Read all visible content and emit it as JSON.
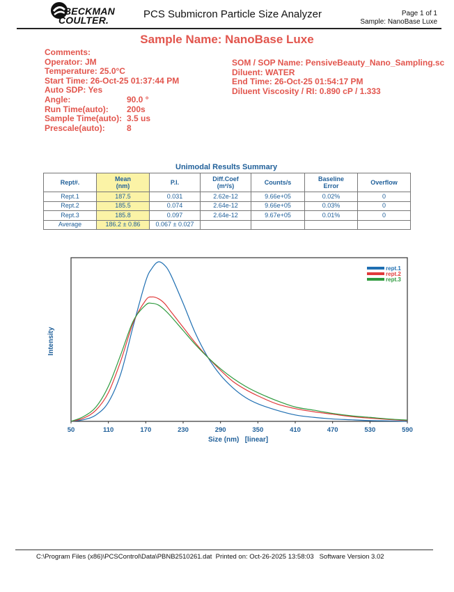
{
  "header": {
    "logo": "BECKMAN COULTER",
    "logo_line1": "BECKMAN",
    "logo_line2": "COULTER.",
    "app_title": "PCS Submicron Particle Size Analyzer",
    "page_label": "Page 1 of 1",
    "sample_label": "Sample: NanoBase Luxe"
  },
  "sample_title": "Sample Name: NanoBase Luxe",
  "meta_left": {
    "comments": "Comments:",
    "operator": "Operator: JM",
    "temperature": "Temperature: 25.0°C",
    "start_time": "Start Time: 26-Oct-25 01:37:44 PM",
    "auto_sdp": "Auto SDP: Yes",
    "angle_key": "Angle:",
    "angle_val": "90.0 °",
    "runtime_key": "Run Time(auto):",
    "runtime_val": "200s",
    "sampletime_key": "Sample Time(auto):",
    "sampletime_val": "3.5 us",
    "prescale_key": "Prescale(auto):",
    "prescale_val": "8"
  },
  "meta_right": {
    "som": "SOM / SOP Name: PensiveBeauty_Nano_Sampling.sc",
    "diluent": "Diluent: WATER",
    "end_time": "End Time: 26-Oct-25 01:54:17 PM",
    "viscosity": "Diluent Viscosity / RI: 0.890 cP / 1.333"
  },
  "table": {
    "title": "Unimodal Results Summary",
    "headers": [
      "Rept#.",
      "Mean",
      "P.I.",
      "Diff.Coef",
      "Counts/s",
      "Baseline",
      "Overflow"
    ],
    "subheaders": [
      "",
      "(nm)",
      "",
      "(m²/s)",
      "",
      "Error",
      ""
    ],
    "rows": [
      [
        "Rept.1",
        "187.5",
        "0.031",
        "2.62e-12",
        "9.66e+05",
        "0.02%",
        "0"
      ],
      [
        "Rept.2",
        "185.5",
        "0.074",
        "2.64e-12",
        "9.66e+05",
        "0.03%",
        "0"
      ],
      [
        "Rept.3",
        "185.8",
        "0.097",
        "2.64e-12",
        "9.67e+05",
        "0.01%",
        "0"
      ],
      [
        "Average",
        "186.2 ±  0.86",
        "0.067 ± 0.027",
        "",
        "",
        "",
        ""
      ]
    ]
  },
  "chart_data": {
    "type": "line",
    "xlabel": "Size (nm)   [linear]",
    "ylabel": "Intensity",
    "xlim": [
      50,
      590
    ],
    "ylim": [
      0,
      1.0
    ],
    "x_ticks": [
      50,
      110,
      170,
      230,
      290,
      350,
      410,
      470,
      530,
      590
    ],
    "series": [
      {
        "name": "rept.1",
        "color": "#1f6fb2",
        "x": [
          50,
          70,
          90,
          110,
          130,
          150,
          170,
          180,
          190,
          200,
          210,
          230,
          250,
          270,
          290,
          310,
          330,
          350,
          380,
          410,
          440,
          470,
          500,
          530,
          560,
          590
        ],
        "y": [
          0.0,
          0.01,
          0.04,
          0.12,
          0.3,
          0.6,
          0.88,
          0.96,
          1.0,
          0.98,
          0.92,
          0.74,
          0.55,
          0.4,
          0.29,
          0.21,
          0.15,
          0.11,
          0.07,
          0.04,
          0.025,
          0.015,
          0.01,
          0.005,
          0.003,
          0.0
        ]
      },
      {
        "name": "rept.2",
        "color": "#e03a3a",
        "x": [
          50,
          70,
          90,
          110,
          130,
          150,
          170,
          180,
          190,
          200,
          210,
          230,
          250,
          270,
          290,
          310,
          330,
          350,
          380,
          410,
          440,
          470,
          500,
          530,
          560,
          590
        ],
        "y": [
          0.0,
          0.02,
          0.07,
          0.18,
          0.38,
          0.62,
          0.76,
          0.78,
          0.77,
          0.74,
          0.69,
          0.59,
          0.49,
          0.4,
          0.32,
          0.25,
          0.2,
          0.16,
          0.11,
          0.08,
          0.06,
          0.045,
          0.03,
          0.02,
          0.012,
          0.005
        ]
      },
      {
        "name": "rept.3",
        "color": "#2e9a3e",
        "x": [
          50,
          70,
          90,
          110,
          130,
          150,
          170,
          180,
          190,
          200,
          210,
          230,
          250,
          270,
          290,
          310,
          330,
          350,
          380,
          410,
          440,
          470,
          500,
          530,
          560,
          590
        ],
        "y": [
          0.0,
          0.03,
          0.09,
          0.22,
          0.42,
          0.63,
          0.73,
          0.74,
          0.73,
          0.7,
          0.66,
          0.57,
          0.48,
          0.4,
          0.33,
          0.27,
          0.22,
          0.18,
          0.13,
          0.09,
          0.07,
          0.05,
          0.035,
          0.025,
          0.015,
          0.008
        ]
      }
    ],
    "legend": "top-right",
    "grid": false
  },
  "colors": {
    "accent_red": "#e2554d",
    "table_blue": "#1f5f99",
    "highlight": "#fbf3a6"
  },
  "footer": "C:\\Program Files (x86)\\PCSControl\\Data\\PBNB2510261.dat  Printed on: Oct-26-2025 13:58:03   Software Version 3.02"
}
